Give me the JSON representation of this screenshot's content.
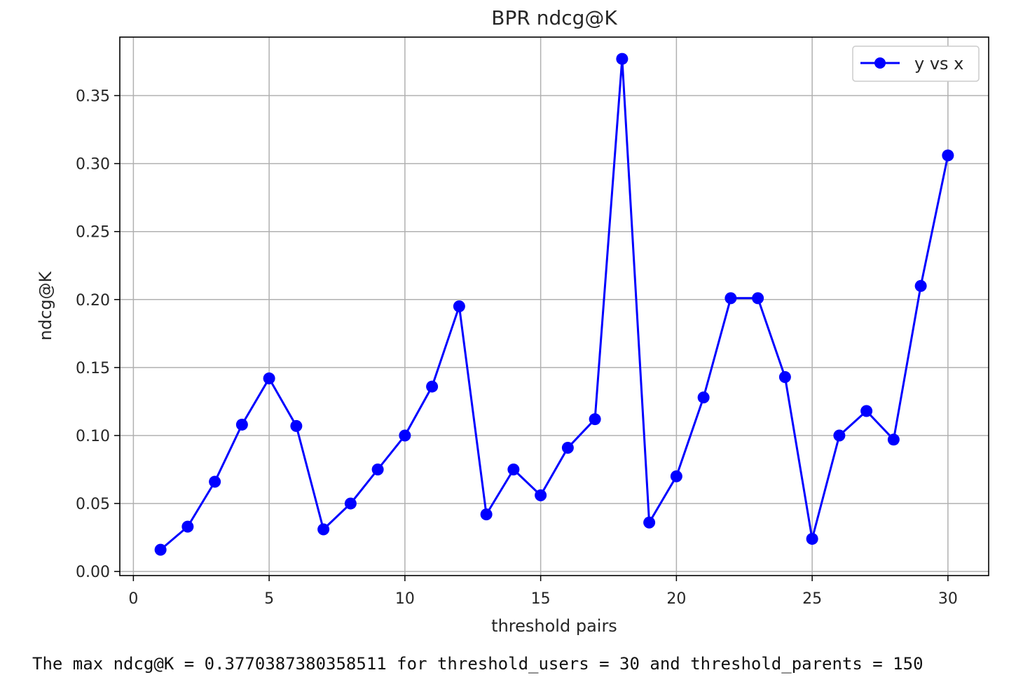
{
  "chart_data": {
    "type": "line",
    "title": "BPR ndcg@K",
    "xlabel": "threshold pairs",
    "ylabel": "ndcg@K",
    "xlim": [
      -0.5,
      31.5
    ],
    "ylim": [
      -0.003,
      0.393
    ],
    "xticks": [
      0,
      5,
      10,
      15,
      20,
      25,
      30
    ],
    "yticks": [
      0.0,
      0.05,
      0.1,
      0.15,
      0.2,
      0.25,
      0.3,
      0.35
    ],
    "xtick_labels": [
      "0",
      "5",
      "10",
      "15",
      "20",
      "25",
      "30"
    ],
    "ytick_labels": [
      "0.00",
      "0.05",
      "0.10",
      "0.15",
      "0.20",
      "0.25",
      "0.30",
      "0.35"
    ],
    "grid": true,
    "legend_position": "top-right",
    "series": [
      {
        "name": "y vs x",
        "color": "#0000ff",
        "marker": "circle",
        "x": [
          1,
          2,
          3,
          4,
          5,
          6,
          7,
          8,
          9,
          10,
          11,
          12,
          13,
          14,
          15,
          16,
          17,
          18,
          19,
          20,
          21,
          22,
          23,
          24,
          25,
          26,
          27,
          28,
          29,
          30
        ],
        "y": [
          0.016,
          0.033,
          0.066,
          0.108,
          0.142,
          0.107,
          0.031,
          0.05,
          0.075,
          0.1,
          0.136,
          0.195,
          0.042,
          0.075,
          0.056,
          0.091,
          0.112,
          0.377,
          0.036,
          0.07,
          0.128,
          0.201,
          0.201,
          0.143,
          0.024,
          0.1,
          0.118,
          0.097,
          0.21,
          0.306
        ]
      }
    ]
  },
  "output_text": "The max ndcg@K = 0.3770387380358511 for threshold_users = 30 and threshold_parents = 150"
}
